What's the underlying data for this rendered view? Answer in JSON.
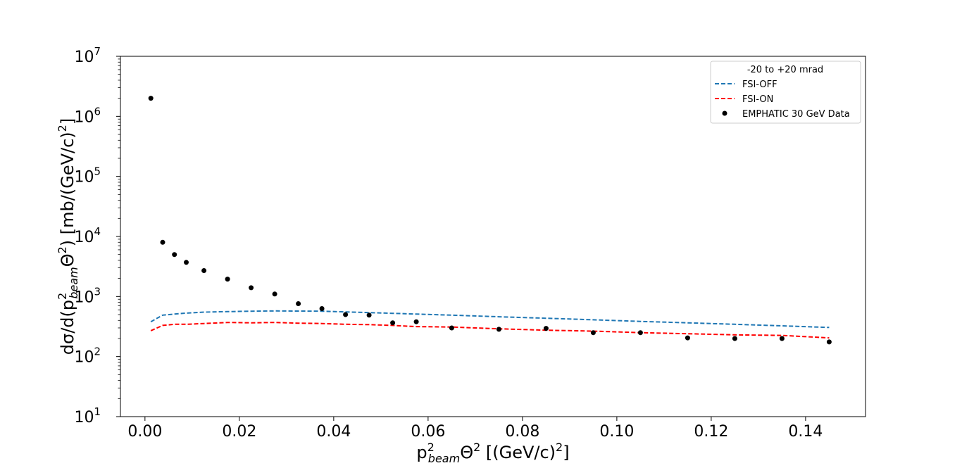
{
  "chart_data": {
    "type": "line",
    "xlabel": {
      "main": "p",
      "sup": "2",
      "sub": "beam",
      "rest": "Θ",
      "rest_sup": "2",
      "unit_pre": " [(GeV/c)",
      "unit_sup": "2",
      "unit_post": "]"
    },
    "ylabel": {
      "pre": "dσ/d(p",
      "sup1": "2",
      "sub1": "beam",
      "mid": "Θ",
      "sup2": "2",
      "post": ") [mb/(GeV/c)",
      "sup3": "2",
      "end": "]"
    },
    "xlim": [
      -0.0052,
      0.1527
    ],
    "ylim": [
      10,
      10000000
    ],
    "yscale": "log",
    "x_ticks": [
      "0.00",
      "0.02",
      "0.04",
      "0.06",
      "0.08",
      "0.10",
      "0.12",
      "0.14"
    ],
    "x_tick_values": [
      0,
      0.02,
      0.04,
      0.06,
      0.08,
      0.1,
      0.12,
      0.14
    ],
    "y_ticks": [
      {
        "value": 10,
        "base": "10",
        "exp": "1"
      },
      {
        "value": 100,
        "base": "10",
        "exp": "2"
      },
      {
        "value": 1000,
        "base": "10",
        "exp": "3"
      },
      {
        "value": 10000,
        "base": "10",
        "exp": "4"
      },
      {
        "value": 100000,
        "base": "10",
        "exp": "5"
      },
      {
        "value": 1000000,
        "base": "10",
        "exp": "6"
      },
      {
        "value": 10000000,
        "base": "10",
        "exp": "7"
      }
    ],
    "legend": {
      "title": "-20 to +20 mrad",
      "placement": "top-right"
    },
    "series": [
      {
        "name": "FSI-OFF",
        "style": "dashed",
        "color": "#1f77b4",
        "x": [
          0.00125,
          0.00375,
          0.00625,
          0.00875,
          0.0125,
          0.0175,
          0.0225,
          0.0275,
          0.0325,
          0.0375,
          0.0425,
          0.0475,
          0.0525,
          0.0575,
          0.065,
          0.075,
          0.085,
          0.095,
          0.105,
          0.115,
          0.125,
          0.135,
          0.145
        ],
        "y": [
          380,
          490,
          510,
          530,
          550,
          560,
          570,
          575,
          572,
          570,
          555,
          540,
          525,
          510,
          490,
          460,
          435,
          410,
          385,
          365,
          345,
          325,
          305
        ]
      },
      {
        "name": "FSI-ON",
        "style": "dashed",
        "color": "#ff0000",
        "x": [
          0.00125,
          0.00375,
          0.00625,
          0.00875,
          0.0125,
          0.0175,
          0.0225,
          0.0275,
          0.0325,
          0.0375,
          0.0425,
          0.0475,
          0.0525,
          0.0575,
          0.065,
          0.075,
          0.085,
          0.095,
          0.105,
          0.115,
          0.125,
          0.135,
          0.145
        ],
        "y": [
          270,
          330,
          345,
          345,
          355,
          370,
          365,
          370,
          360,
          355,
          345,
          340,
          330,
          315,
          310,
          290,
          275,
          265,
          250,
          240,
          230,
          225,
          205
        ]
      },
      {
        "name": "EMPHATIC 30 GeV Data",
        "style": "markers",
        "color": "#000000",
        "x": [
          0.00125,
          0.00375,
          0.00625,
          0.00875,
          0.0125,
          0.0175,
          0.0225,
          0.0275,
          0.0325,
          0.0375,
          0.0425,
          0.0475,
          0.0525,
          0.0575,
          0.065,
          0.075,
          0.085,
          0.095,
          0.105,
          0.115,
          0.125,
          0.135,
          0.145
        ],
        "y": [
          2000000,
          8000,
          5000,
          3700,
          2700,
          1950,
          1400,
          1100,
          760,
          630,
          500,
          490,
          365,
          380,
          300,
          285,
          295,
          250,
          250,
          205,
          200,
          200,
          175
        ]
      }
    ]
  }
}
